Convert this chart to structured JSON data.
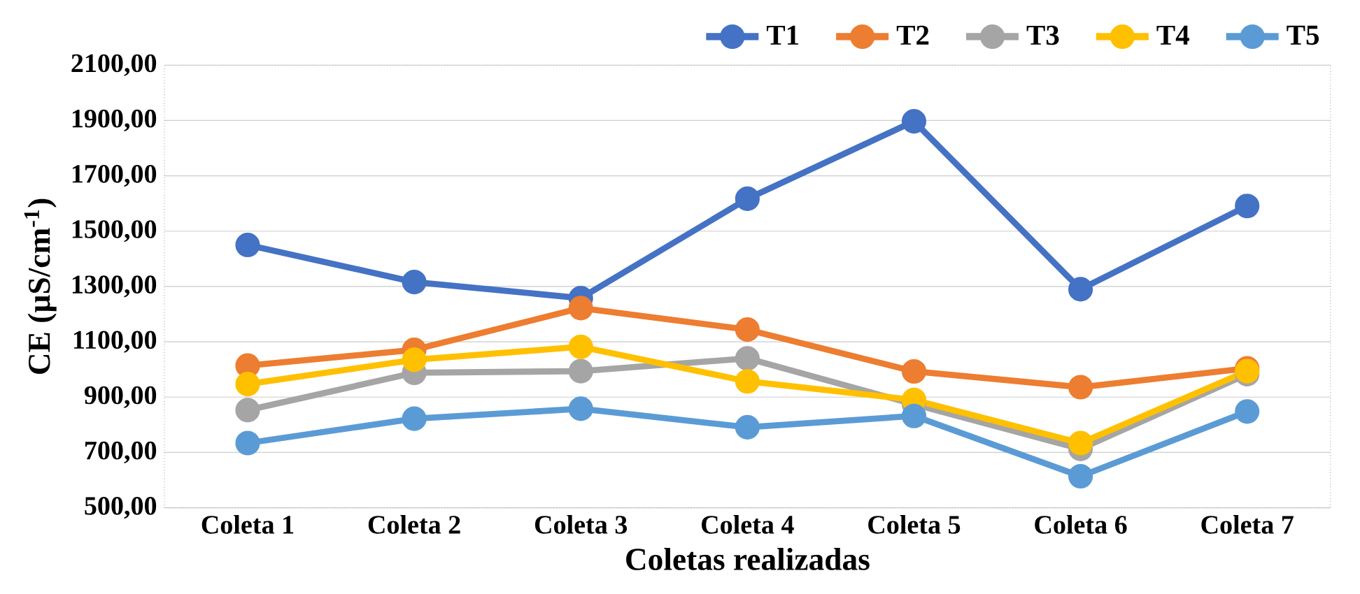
{
  "chart_data": {
    "type": "line",
    "xlabel": "Coletas realizadas",
    "ylabel": "CE (µS/cm$^{-1}$)",
    "categories": [
      "Coleta 1",
      "Coleta 2",
      "Coleta 3",
      "Coleta 4",
      "Coleta 5",
      "Coleta 6",
      "Coleta 7"
    ],
    "series": [
      {
        "name": "T1",
        "color": "#4472c4",
        "values": [
          1450,
          1316,
          1258,
          1617,
          1897,
          1290,
          1591
        ]
      },
      {
        "name": "T2",
        "color": "#ed7d31",
        "values": [
          1014,
          1071,
          1222,
          1144,
          993,
          936,
          1004
        ]
      },
      {
        "name": "T3",
        "color": "#a5a5a5",
        "values": [
          853,
          988,
          994,
          1040,
          874,
          713,
          983
        ]
      },
      {
        "name": "T4",
        "color": "#ffc000",
        "values": [
          947,
          1035,
          1082,
          957,
          890,
          734,
          994
        ]
      },
      {
        "name": "T5",
        "color": "#5b9bd5",
        "values": [
          734,
          822,
          858,
          791,
          832,
          614,
          848
        ]
      }
    ],
    "ylim": [
      500,
      2100
    ],
    "yticks": [
      {
        "value": 500,
        "label": "500,00"
      },
      {
        "value": 700,
        "label": "700,00"
      },
      {
        "value": 900,
        "label": "900,00"
      },
      {
        "value": 1100,
        "label": "1100,00"
      },
      {
        "value": 1300,
        "label": "1300,00"
      },
      {
        "value": 1500,
        "label": "1500,00"
      },
      {
        "value": 1700,
        "label": "1700,00"
      },
      {
        "value": 1900,
        "label": "1900,00"
      },
      {
        "value": 2100,
        "label": "2100,00"
      }
    ],
    "grid": "y",
    "legend": "top right",
    "marker": "circle",
    "line_style": "solid"
  }
}
